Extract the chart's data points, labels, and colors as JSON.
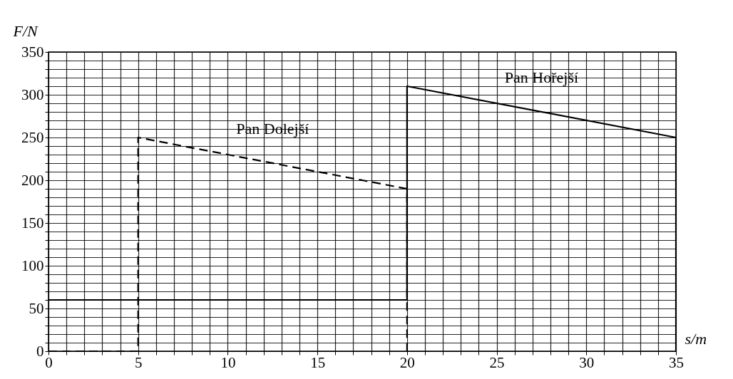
{
  "chart_data": {
    "type": "line",
    "xlabel": "s/m",
    "ylabel": "F/N",
    "xlim": [
      0,
      35
    ],
    "ylim": [
      0,
      350
    ],
    "xticks": [
      0,
      {
        "value": 1,
        "label": null
      },
      {
        "value": 2,
        "label": null
      },
      {
        "value": 3,
        "label": null
      },
      {
        "value": 4,
        "label": null
      },
      5,
      {
        "value": 6,
        "label": null
      },
      {
        "value": 7,
        "label": null
      },
      {
        "value": 8,
        "label": null
      },
      {
        "value": 9,
        "label": null
      },
      10,
      {
        "value": 11,
        "label": null
      },
      {
        "value": 12,
        "label": null
      },
      {
        "value": 13,
        "label": null
      },
      {
        "value": 14,
        "label": null
      },
      15,
      {
        "value": 16,
        "label": null
      },
      {
        "value": 17,
        "label": null
      },
      {
        "value": 18,
        "label": null
      },
      {
        "value": 19,
        "label": null
      },
      20,
      {
        "value": 21,
        "label": null
      },
      {
        "value": 22,
        "label": null
      },
      {
        "value": 23,
        "label": null
      },
      {
        "value": 24,
        "label": null
      },
      25,
      {
        "value": 26,
        "label": null
      },
      {
        "value": 27,
        "label": null
      },
      {
        "value": 28,
        "label": null
      },
      {
        "value": 29,
        "label": null
      },
      30,
      {
        "value": 31,
        "label": null
      },
      {
        "value": 32,
        "label": null
      },
      {
        "value": 33,
        "label": null
      },
      {
        "value": 34,
        "label": null
      },
      35
    ],
    "yticks": [
      0,
      {
        "value": 10,
        "label": null
      },
      {
        "value": 20,
        "label": null
      },
      {
        "value": 30,
        "label": null
      },
      {
        "value": 40,
        "label": null
      },
      50,
      {
        "value": 60,
        "label": null
      },
      {
        "value": 70,
        "label": null
      },
      {
        "value": 80,
        "label": null
      },
      {
        "value": 90,
        "label": null
      },
      100,
      {
        "value": 110,
        "label": null
      },
      {
        "value": 120,
        "label": null
      },
      {
        "value": 130,
        "label": null
      },
      {
        "value": 140,
        "label": null
      },
      150,
      {
        "value": 160,
        "label": null
      },
      {
        "value": 170,
        "label": null
      },
      {
        "value": 180,
        "label": null
      },
      {
        "value": 190,
        "label": null
      },
      200,
      {
        "value": 210,
        "label": null
      },
      {
        "value": 220,
        "label": null
      },
      {
        "value": 230,
        "label": null
      },
      {
        "value": 240,
        "label": null
      },
      250,
      {
        "value": 260,
        "label": null
      },
      {
        "value": 270,
        "label": null
      },
      {
        "value": 280,
        "label": null
      },
      {
        "value": 290,
        "label": null
      },
      300,
      {
        "value": 310,
        "label": null
      },
      {
        "value": 320,
        "label": null
      },
      {
        "value": 330,
        "label": null
      },
      {
        "value": 340,
        "label": null
      },
      350
    ],
    "grid": true,
    "series": [
      {
        "name": "Pan Dolejší",
        "color": "#000000",
        "line_style": "dashed",
        "x": [
          0,
          5,
          5,
          20,
          20
        ],
        "values": [
          0,
          0,
          250,
          190,
          0
        ]
      },
      {
        "name": "Pan Hořejší",
        "color": "#000000",
        "line_style": "solid",
        "x": [
          0,
          20,
          20,
          35,
          35
        ],
        "values": [
          60,
          60,
          310,
          250,
          0
        ]
      }
    ]
  }
}
